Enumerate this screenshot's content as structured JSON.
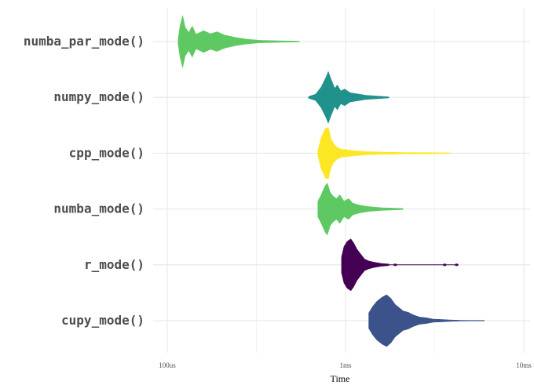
{
  "chart_data": {
    "type": "violin",
    "xlabel": "Time",
    "x_scale": "log10",
    "x_unit": "ms",
    "xlim_ms": [
      0.074,
      13.5
    ],
    "x_ticks": [
      {
        "value_ms": 0.1,
        "label": "100us"
      },
      {
        "value_ms": 1,
        "label": "1ms"
      },
      {
        "value_ms": 10,
        "label": "10ms"
      }
    ],
    "grid": true,
    "legend": "none",
    "categories": [
      "numba_par_mode()",
      "numpy_mode()",
      "cpp_mode()",
      "numba_mode()",
      "r_mode()",
      "cupy_mode()"
    ],
    "series": [
      {
        "category": "numba_par_mode()",
        "color": "#5ec962",
        "min_ms": 0.115,
        "peak_ms": 0.123,
        "max_ms": 0.55,
        "profile": [
          [
            0.115,
            0.08
          ],
          [
            0.118,
            0.6
          ],
          [
            0.122,
            1.0
          ],
          [
            0.126,
            0.55
          ],
          [
            0.132,
            0.35
          ],
          [
            0.138,
            0.6
          ],
          [
            0.145,
            0.28
          ],
          [
            0.16,
            0.42
          ],
          [
            0.175,
            0.3
          ],
          [
            0.19,
            0.38
          ],
          [
            0.21,
            0.25
          ],
          [
            0.24,
            0.16
          ],
          [
            0.28,
            0.09
          ],
          [
            0.33,
            0.05
          ],
          [
            0.42,
            0.03
          ],
          [
            0.55,
            0.015
          ]
        ]
      },
      {
        "category": "numpy_mode()",
        "color": "#21918c",
        "min_ms": 0.62,
        "peak_ms": 0.8,
        "max_ms": 1.75,
        "profile": [
          [
            0.62,
            0.03
          ],
          [
            0.68,
            0.12
          ],
          [
            0.73,
            0.4
          ],
          [
            0.78,
            0.8
          ],
          [
            0.8,
            1.0
          ],
          [
            0.83,
            0.7
          ],
          [
            0.87,
            0.35
          ],
          [
            0.9,
            0.48
          ],
          [
            0.94,
            0.25
          ],
          [
            0.99,
            0.32
          ],
          [
            1.06,
            0.18
          ],
          [
            1.15,
            0.14
          ],
          [
            1.3,
            0.08
          ],
          [
            1.5,
            0.05
          ],
          [
            1.75,
            0.02
          ]
        ]
      },
      {
        "category": "cpp_mode()",
        "color": "#fde725",
        "min_ms": 0.7,
        "peak_ms": 0.8,
        "max_ms": 3.9,
        "profile": [
          [
            0.7,
            0.1
          ],
          [
            0.73,
            0.6
          ],
          [
            0.77,
            0.95
          ],
          [
            0.8,
            1.0
          ],
          [
            0.83,
            0.55
          ],
          [
            0.86,
            0.35
          ],
          [
            0.9,
            0.22
          ],
          [
            0.95,
            0.15
          ],
          [
            1.0,
            0.14
          ],
          [
            1.1,
            0.1
          ],
          [
            1.3,
            0.06
          ],
          [
            1.6,
            0.04
          ],
          [
            2.2,
            0.025
          ],
          [
            3.0,
            0.02
          ],
          [
            3.9,
            0.01
          ]
        ]
      },
      {
        "category": "numba_mode()",
        "color": "#5ec962",
        "min_ms": 0.7,
        "peak_ms": 0.79,
        "max_ms": 2.1,
        "profile": [
          [
            0.7,
            0.3
          ],
          [
            0.73,
            0.55
          ],
          [
            0.77,
            0.9
          ],
          [
            0.79,
            1.0
          ],
          [
            0.82,
            0.65
          ],
          [
            0.85,
            0.5
          ],
          [
            0.89,
            0.4
          ],
          [
            0.93,
            0.55
          ],
          [
            0.98,
            0.3
          ],
          [
            1.04,
            0.4
          ],
          [
            1.1,
            0.22
          ],
          [
            1.2,
            0.15
          ],
          [
            1.35,
            0.09
          ],
          [
            1.6,
            0.05
          ],
          [
            2.1,
            0.02
          ]
        ]
      },
      {
        "category": "r_mode()",
        "color": "#440154",
        "min_ms": 0.95,
        "peak_ms": 1.07,
        "max_ms": 4.3,
        "profile": [
          [
            0.95,
            0.3
          ],
          [
            0.98,
            0.7
          ],
          [
            1.02,
            0.9
          ],
          [
            1.07,
            1.0
          ],
          [
            1.11,
            0.85
          ],
          [
            1.16,
            0.6
          ],
          [
            1.22,
            0.4
          ],
          [
            1.28,
            0.22
          ],
          [
            1.35,
            0.15
          ],
          [
            1.45,
            0.1
          ],
          [
            1.6,
            0.05
          ],
          [
            1.75,
            0.03
          ]
        ],
        "outliers_ms": [
          1.9,
          3.6,
          4.2
        ]
      },
      {
        "category": "cupy_mode()",
        "color": "#3b528b",
        "min_ms": 1.35,
        "peak_ms": 1.7,
        "max_ms": 6.0,
        "profile": [
          [
            1.35,
            0.3
          ],
          [
            1.42,
            0.55
          ],
          [
            1.5,
            0.75
          ],
          [
            1.6,
            0.9
          ],
          [
            1.7,
            1.0
          ],
          [
            1.8,
            0.85
          ],
          [
            1.9,
            0.62
          ],
          [
            2.0,
            0.5
          ],
          [
            2.1,
            0.38
          ],
          [
            2.25,
            0.32
          ],
          [
            2.4,
            0.22
          ],
          [
            2.6,
            0.14
          ],
          [
            2.85,
            0.11
          ],
          [
            3.1,
            0.06
          ],
          [
            3.4,
            0.05
          ],
          [
            3.8,
            0.03
          ],
          [
            4.4,
            0.015
          ],
          [
            5.0,
            0.01
          ],
          [
            6.0,
            0.008
          ]
        ]
      }
    ]
  }
}
